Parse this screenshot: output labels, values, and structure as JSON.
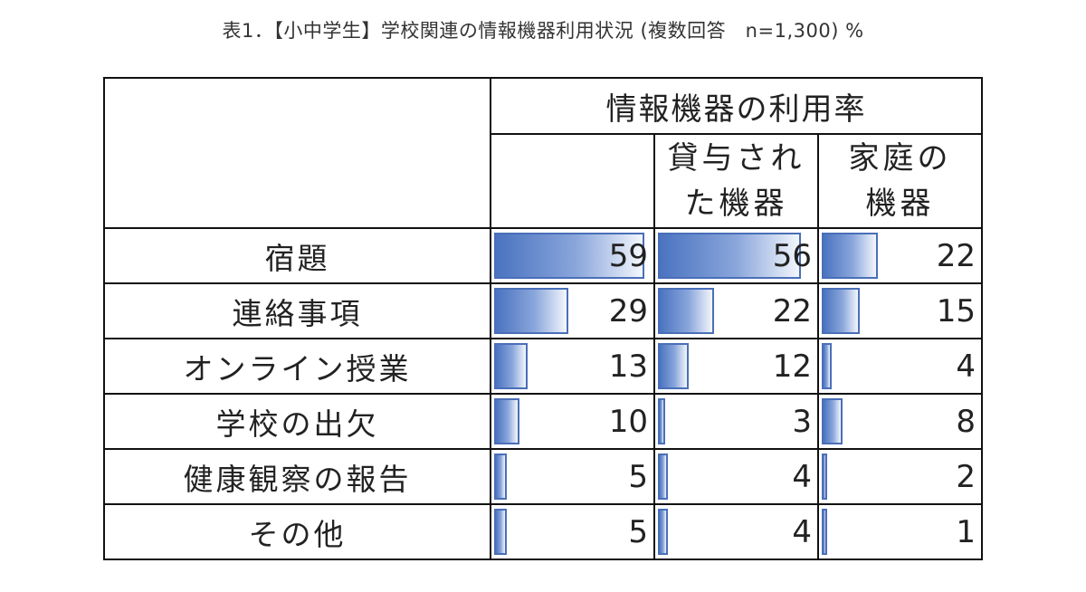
{
  "caption": "表1．【小中学生】学校関連の情報機器利用状況 (複数回答　n=1,300) %",
  "header": {
    "group": "情報機器の利用率",
    "loaned_line1": "貸与され",
    "loaned_line2": "た機器",
    "home_line1": "家庭の",
    "home_line2": "機器"
  },
  "rows": [
    {
      "label": "宿題",
      "total": "59",
      "loaned": "56",
      "home": "22"
    },
    {
      "label": "連絡事項",
      "total": "29",
      "loaned": "22",
      "home": "15"
    },
    {
      "label": "オンライン授業",
      "total": "13",
      "loaned": "12",
      "home": "4"
    },
    {
      "label": "学校の出欠",
      "total": "10",
      "loaned": "3",
      "home": "8"
    },
    {
      "label": "健康観察の報告",
      "total": "5",
      "loaned": "4",
      "home": "2"
    },
    {
      "label": "その他",
      "total": "5",
      "loaned": "4",
      "home": "1"
    }
  ],
  "bar_scale_max": 60,
  "colors": {
    "bar_fill": "#4a73c0",
    "bar_border": "#4a6fb8",
    "grid": "#111111"
  }
}
